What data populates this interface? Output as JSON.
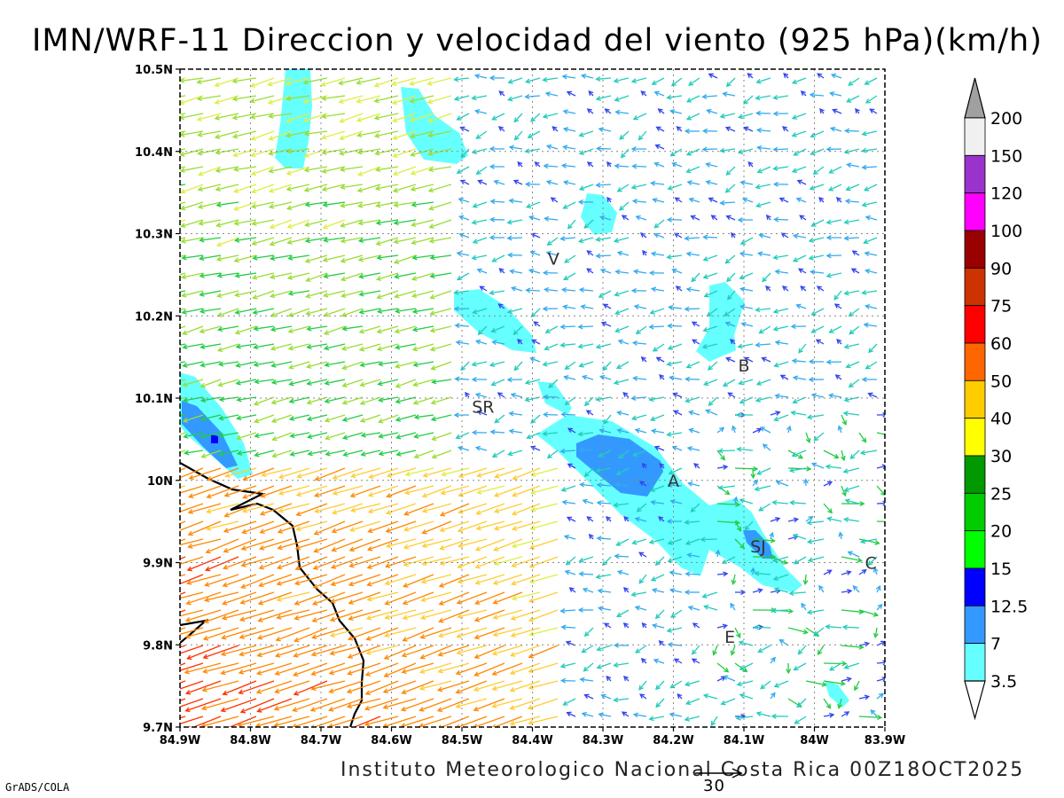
{
  "title": "IMN/WRF-11 Direccion y velocidad del viento (925 hPa)(km/h)",
  "credit": "Instituto Meteorologico Nacional Costa Rica 00Z18OCT2025",
  "tool": "GrADS/COLA",
  "reference_vector": {
    "label": "30",
    "value": 30
  },
  "axes": {
    "x_ticks": [
      "84.9W",
      "84.8W",
      "84.7W",
      "84.6W",
      "84.5W",
      "84.4W",
      "84.3W",
      "84.2W",
      "84.1W",
      "84W",
      "83.9W"
    ],
    "y_ticks": [
      "10.5N",
      "10.4N",
      "10.3N",
      "10.2N",
      "10.1N",
      "10N",
      "9.9N",
      "9.8N",
      "9.7N"
    ],
    "lon_range": [
      -84.9,
      -83.9
    ],
    "lat_range": [
      9.7,
      10.5
    ],
    "grid": true
  },
  "cities": [
    {
      "code": "V",
      "lon": -84.37,
      "lat": 10.27
    },
    {
      "code": "SR",
      "lon": -84.47,
      "lat": 10.09
    },
    {
      "code": "B",
      "lon": -84.1,
      "lat": 10.14
    },
    {
      "code": "A",
      "lon": -84.2,
      "lat": 10.0
    },
    {
      "code": "SJ",
      "lon": -84.08,
      "lat": 9.92
    },
    {
      "code": "C",
      "lon": -83.92,
      "lat": 9.9
    },
    {
      "code": "E",
      "lon": -84.12,
      "lat": 9.81
    }
  ],
  "colorbar": {
    "labels": [
      "200",
      "150",
      "120",
      "100",
      "90",
      "75",
      "60",
      "50",
      "40",
      "30",
      "25",
      "20",
      "15",
      "12.5",
      "7",
      "3.5"
    ],
    "colors": [
      "#f0f0f0",
      "#9933cc",
      "#ff00ff",
      "#990000",
      "#cc3300",
      "#ff0000",
      "#ff6600",
      "#ffcc00",
      "#ffff00",
      "#009900",
      "#00cc00",
      "#00ff00",
      "#0000ff",
      "#3399ff",
      "#66ffff"
    ],
    "top_color": "#a0a0a0",
    "bottom_color": "#ffffff"
  },
  "colors": {
    "shade_low": "#66ffff",
    "shade_mid": "#3399ff",
    "shade_high": "#0000ff",
    "coastline": "#000000"
  }
}
